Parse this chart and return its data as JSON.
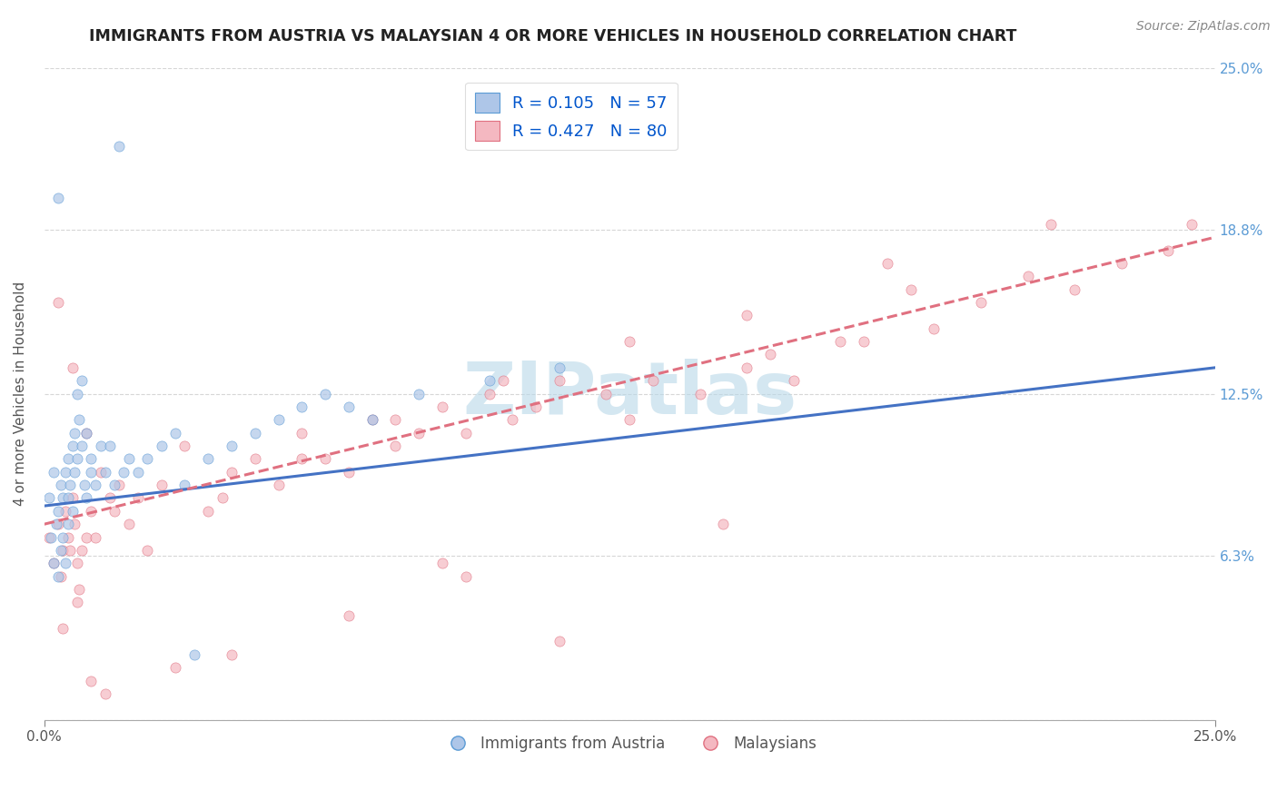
{
  "title": "IMMIGRANTS FROM AUSTRIA VS MALAYSIAN 4 OR MORE VEHICLES IN HOUSEHOLD CORRELATION CHART",
  "source": "Source: ZipAtlas.com",
  "ylabel": "4 or more Vehicles in Household",
  "xlim": [
    0.0,
    25.0
  ],
  "ylim": [
    0.0,
    25.0
  ],
  "x_tick_labels": [
    "0.0%",
    "25.0%"
  ],
  "y_tick_values": [
    0.0,
    6.3,
    12.5,
    18.8,
    25.0
  ],
  "y_tick_labels": [
    "6.3%",
    "12.5%",
    "18.8%",
    "25.0%"
  ],
  "legend_entries": [
    {
      "label": "Immigrants from Austria",
      "color": "#aec6e8",
      "edge_color": "#5b9bd5",
      "R": 0.105,
      "N": 57
    },
    {
      "label": "Malaysians",
      "color": "#f4b8c1",
      "edge_color": "#e07080",
      "R": 0.427,
      "N": 80
    }
  ],
  "blue_line_color": "#4472c4",
  "pink_line_color": "#e07080",
  "blue_line_style": "-",
  "pink_line_style": "--",
  "blue_line_start_y": 8.2,
  "blue_line_end_y": 13.5,
  "pink_line_start_y": 7.5,
  "pink_line_end_y": 18.5,
  "grid_color": "#cccccc",
  "background_color": "#ffffff",
  "watermark_color": "#b8d8e8",
  "title_fontsize": 12.5,
  "axis_label_fontsize": 11,
  "tick_fontsize": 11,
  "blue_scatter_x": [
    0.1,
    0.15,
    0.2,
    0.2,
    0.25,
    0.3,
    0.3,
    0.35,
    0.35,
    0.4,
    0.4,
    0.45,
    0.45,
    0.5,
    0.5,
    0.5,
    0.55,
    0.6,
    0.6,
    0.65,
    0.65,
    0.7,
    0.7,
    0.75,
    0.8,
    0.8,
    0.85,
    0.9,
    0.9,
    1.0,
    1.0,
    1.1,
    1.2,
    1.3,
    1.4,
    1.5,
    1.7,
    1.8,
    2.0,
    2.2,
    2.5,
    2.8,
    3.0,
    3.5,
    4.0,
    4.5,
    5.0,
    5.5,
    6.0,
    6.5,
    7.0,
    8.0,
    9.5,
    11.0,
    3.2,
    1.6,
    0.3
  ],
  "blue_scatter_y": [
    8.5,
    7.0,
    9.5,
    6.0,
    7.5,
    8.0,
    5.5,
    9.0,
    6.5,
    8.5,
    7.0,
    9.5,
    6.0,
    10.0,
    8.5,
    7.5,
    9.0,
    10.5,
    8.0,
    9.5,
    11.0,
    10.0,
    12.5,
    11.5,
    13.0,
    10.5,
    9.0,
    11.0,
    8.5,
    9.5,
    10.0,
    9.0,
    10.5,
    9.5,
    10.5,
    9.0,
    9.5,
    10.0,
    9.5,
    10.0,
    10.5,
    11.0,
    9.0,
    10.0,
    10.5,
    11.0,
    11.5,
    12.0,
    12.5,
    12.0,
    11.5,
    12.5,
    13.0,
    13.5,
    2.5,
    22.0,
    20.0
  ],
  "pink_scatter_x": [
    0.1,
    0.2,
    0.3,
    0.35,
    0.4,
    0.45,
    0.5,
    0.55,
    0.6,
    0.65,
    0.7,
    0.75,
    0.8,
    0.9,
    1.0,
    1.1,
    1.2,
    1.4,
    1.6,
    1.8,
    2.0,
    2.5,
    3.0,
    3.5,
    4.0,
    4.5,
    5.0,
    5.5,
    6.0,
    6.5,
    7.0,
    7.5,
    8.0,
    8.5,
    9.0,
    9.5,
    10.0,
    10.5,
    11.0,
    12.0,
    12.5,
    13.0,
    14.0,
    15.0,
    15.5,
    16.0,
    17.0,
    17.5,
    18.5,
    19.0,
    20.0,
    21.0,
    22.0,
    23.0,
    24.0,
    24.5,
    0.3,
    0.6,
    0.9,
    1.5,
    2.2,
    3.8,
    5.5,
    7.5,
    9.8,
    12.5,
    15.0,
    18.0,
    21.5,
    9.0,
    6.5,
    4.0,
    2.8,
    1.0,
    0.4,
    0.7,
    1.3,
    14.5,
    8.5,
    11.0
  ],
  "pink_scatter_y": [
    7.0,
    6.0,
    7.5,
    5.5,
    6.5,
    8.0,
    7.0,
    6.5,
    8.5,
    7.5,
    6.0,
    5.0,
    6.5,
    7.0,
    8.0,
    7.0,
    9.5,
    8.5,
    9.0,
    7.5,
    8.5,
    9.0,
    10.5,
    8.0,
    9.5,
    10.0,
    9.0,
    11.0,
    10.0,
    9.5,
    11.5,
    10.5,
    11.0,
    12.0,
    11.0,
    12.5,
    11.5,
    12.0,
    13.0,
    12.5,
    11.5,
    13.0,
    12.5,
    13.5,
    14.0,
    13.0,
    14.5,
    14.5,
    16.5,
    15.0,
    16.0,
    17.0,
    16.5,
    17.5,
    18.0,
    19.0,
    16.0,
    13.5,
    11.0,
    8.0,
    6.5,
    8.5,
    10.0,
    11.5,
    13.0,
    14.5,
    15.5,
    17.5,
    19.0,
    5.5,
    4.0,
    2.5,
    2.0,
    1.5,
    3.5,
    4.5,
    1.0,
    7.5,
    6.0,
    3.0
  ]
}
